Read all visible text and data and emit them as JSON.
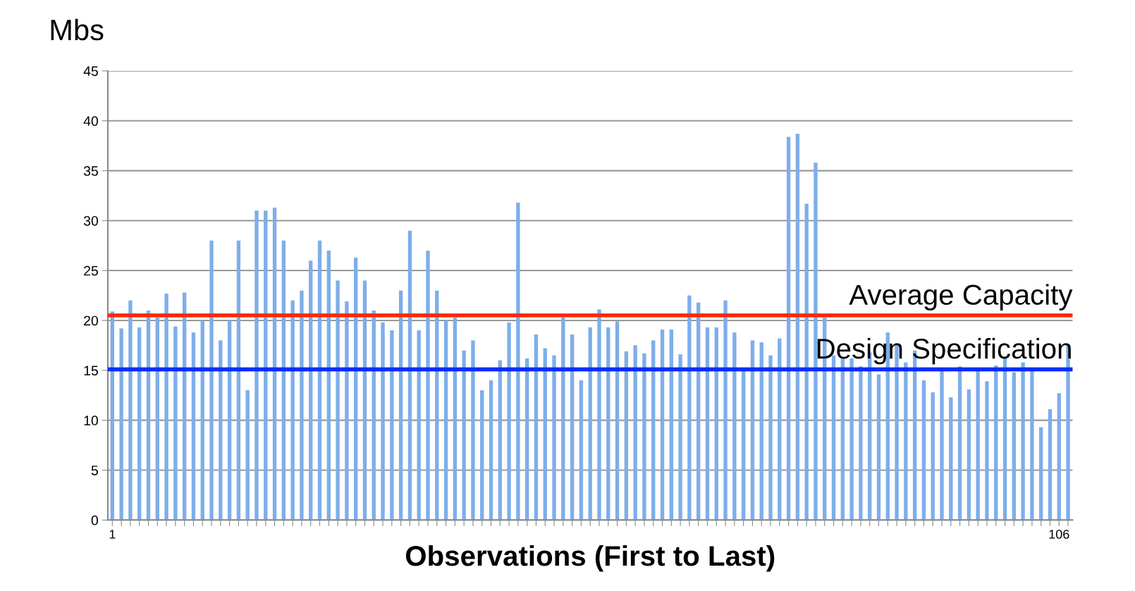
{
  "chart_data": {
    "type": "bar",
    "ylabel": "Mbs",
    "xlabel": "Observations (First to Last)",
    "categories": [
      "1",
      null,
      null,
      null,
      null,
      null,
      null,
      null,
      null,
      null,
      null,
      null,
      null,
      null,
      null,
      null,
      null,
      null,
      null,
      null,
      null,
      null,
      null,
      null,
      null,
      null,
      null,
      null,
      null,
      null,
      null,
      null,
      null,
      null,
      null,
      null,
      null,
      null,
      null,
      null,
      null,
      null,
      null,
      null,
      null,
      null,
      null,
      null,
      null,
      null,
      null,
      null,
      null,
      null,
      null,
      null,
      null,
      null,
      null,
      null,
      null,
      null,
      null,
      null,
      null,
      null,
      null,
      null,
      null,
      null,
      null,
      null,
      null,
      null,
      null,
      null,
      null,
      null,
      null,
      null,
      null,
      null,
      null,
      null,
      null,
      null,
      null,
      null,
      null,
      null,
      null,
      null,
      null,
      null,
      null,
      null,
      null,
      null,
      null,
      null,
      null,
      null,
      null,
      null,
      null,
      "106",
      null
    ],
    "values": [
      20.9,
      19.2,
      22.0,
      19.3,
      21.0,
      20.3,
      22.7,
      19.4,
      22.8,
      18.8,
      20.0,
      28.0,
      18.0,
      20.0,
      28.0,
      13.0,
      31.0,
      31.0,
      31.3,
      28.0,
      22.0,
      23.0,
      26.0,
      28.0,
      27.0,
      24.0,
      21.9,
      26.3,
      24.0,
      21.0,
      19.8,
      19.0,
      23.0,
      29.0,
      19.0,
      27.0,
      23.0,
      20.0,
      20.3,
      17.0,
      18.0,
      13.0,
      14.0,
      16.0,
      19.8,
      31.8,
      16.2,
      18.6,
      17.2,
      16.5,
      20.3,
      18.6,
      14.0,
      19.3,
      21.1,
      19.3,
      19.9,
      16.9,
      17.5,
      16.7,
      18.0,
      19.1,
      19.1,
      16.6,
      22.5,
      21.8,
      19.3,
      19.3,
      22.0,
      18.8,
      15.0,
      18.0,
      17.8,
      16.5,
      18.2,
      38.4,
      38.7,
      31.7,
      35.8,
      20.3,
      16.5,
      16.3,
      16.2,
      15.4,
      16.8,
      14.6,
      18.8,
      17.6,
      15.8,
      17.0,
      14.0,
      12.8,
      15.0,
      12.3,
      15.4,
      13.1,
      15.0,
      13.9,
      15.5,
      16.3,
      14.8,
      15.8,
      15.0,
      9.3,
      11.1,
      12.7,
      17.5
    ],
    "color": "#7eaeea",
    "ylim": [
      0,
      45
    ],
    "yticks": [
      0,
      5,
      10,
      15,
      20,
      25,
      30,
      35,
      40,
      45
    ],
    "grid": "y",
    "ref_lines": [
      {
        "axis": "y",
        "value": 20.5,
        "label": "Average Capacity",
        "color": "#ff2a00"
      },
      {
        "axis": "y",
        "value": 15.1,
        "label": "Design Specification",
        "color": "#0a2cff"
      }
    ]
  }
}
